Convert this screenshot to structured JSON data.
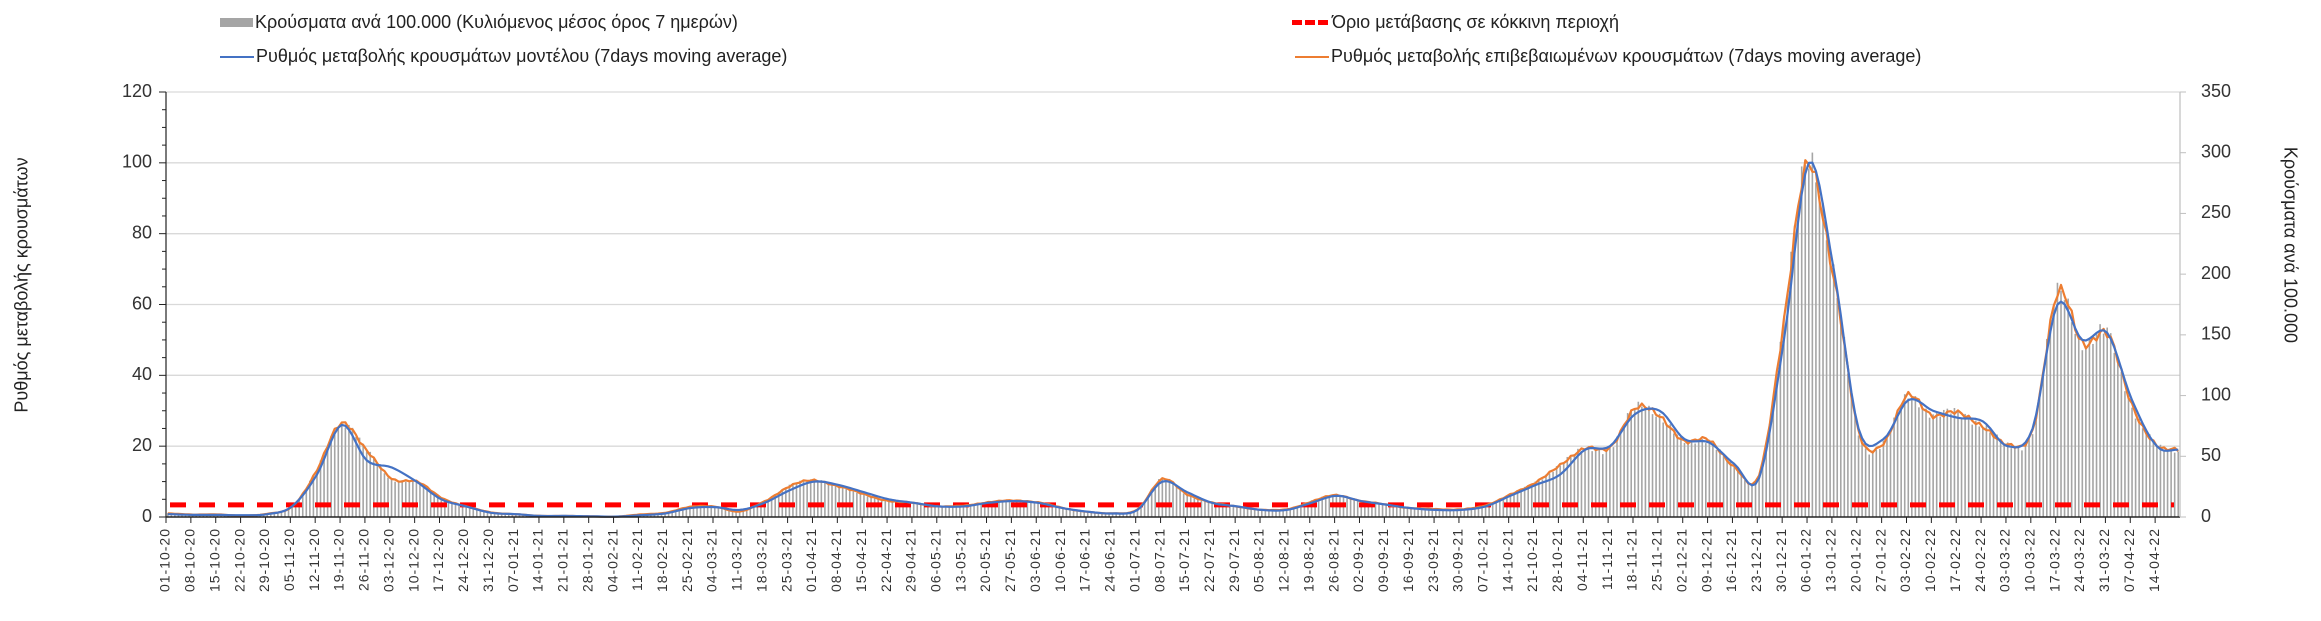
{
  "chart_data": {
    "type": "bar+line",
    "legend": {
      "bars": "Κρούσματα ανά 100.000 (Κυλιόμενος μέσος όρος 7 ημερών)",
      "threshold": "Όριο μετάβασης σε κόκκινη περιοχή",
      "model": "Ρυθμός μεταβολής κρουσμάτων μοντέλου (7days moving average)",
      "confirmed": "Ρυθμός μεταβολής επιβεβαιωμένων κρουσμάτων (7days moving average)"
    },
    "ylabel_left": "Ρυθμός μεταβολής κρουσμάτων",
    "ylabel_right": "Κρούσματα ανά 100.000",
    "ylim_left": [
      0,
      120
    ],
    "yticks_left": [
      "0",
      "20",
      "40",
      "60",
      "80",
      "100",
      "120"
    ],
    "ylim_right": [
      0,
      350
    ],
    "yticks_right": [
      "0",
      "50",
      "100",
      "150",
      "200",
      "250",
      "300",
      "350"
    ],
    "threshold_right_axis": 10,
    "x_tick_labels": [
      "01-10-20",
      "08-10-20",
      "15-10-20",
      "22-10-20",
      "29-10-20",
      "05-11-20",
      "12-11-20",
      "19-11-20",
      "26-11-20",
      "03-12-20",
      "10-12-20",
      "17-12-20",
      "24-12-20",
      "31-12-20",
      "07-01-21",
      "14-01-21",
      "21-01-21",
      "28-01-21",
      "04-02-21",
      "11-02-21",
      "18-02-21",
      "25-02-21",
      "04-03-21",
      "11-03-21",
      "18-03-21",
      "25-03-21",
      "01-04-21",
      "08-04-21",
      "15-04-21",
      "22-04-21",
      "29-04-21",
      "06-05-21",
      "13-05-21",
      "20-05-21",
      "27-05-21",
      "03-06-21",
      "10-06-21",
      "17-06-21",
      "24-06-21",
      "01-07-21",
      "08-07-21",
      "15-07-21",
      "22-07-21",
      "29-07-21",
      "05-08-21",
      "12-08-21",
      "19-08-21",
      "26-08-21",
      "02-09-21",
      "09-09-21",
      "16-09-21",
      "23-09-21",
      "30-09-21",
      "07-10-21",
      "14-10-21",
      "21-10-21",
      "28-10-21",
      "04-11-21",
      "11-11-21",
      "18-11-21",
      "25-11-21",
      "02-12-21",
      "09-12-21",
      "16-12-21",
      "23-12-21",
      "30-12-21",
      "06-01-22",
      "13-01-22",
      "20-01-22",
      "27-01-22",
      "03-02-22",
      "10-02-22",
      "17-02-22",
      "24-02-22",
      "03-03-22",
      "10-03-22",
      "17-03-22",
      "24-03-22",
      "31-03-22",
      "07-04-22",
      "14-04-22"
    ],
    "series": [
      {
        "name": "bars",
        "axis": "right",
        "color": "#a5a5a5",
        "values": [
          3,
          2,
          2,
          1,
          3,
          9,
          38,
          79,
          54,
          32,
          29,
          16,
          9,
          4,
          2,
          1,
          1,
          1,
          0,
          2,
          4,
          8,
          9,
          4,
          13,
          25,
          31,
          25,
          19,
          13,
          12,
          9,
          9,
          12,
          13,
          12,
          7,
          4,
          3,
          6,
          31,
          19,
          12,
          9,
          6,
          6,
          13,
          18,
          13,
          10,
          7,
          6,
          6,
          9,
          19,
          28,
          44,
          55,
          58,
          88,
          85,
          61,
          64,
          41,
          35,
          160,
          300,
          199,
          70,
          61,
          99,
          85,
          85,
          76,
          58,
          73,
          181,
          146,
          149,
          93,
          58,
          55
        ]
      },
      {
        "name": "model",
        "axis": "left",
        "color": "#4472c4",
        "values": [
          0.8,
          0.6,
          0.6,
          0.5,
          0.8,
          3,
          12,
          26,
          16,
          14,
          10,
          5,
          3,
          1.2,
          0.8,
          0.3,
          0.3,
          0.2,
          0.1,
          0.5,
          1,
          2.5,
          2.8,
          2,
          4,
          7.5,
          10,
          9,
          7,
          5,
          4,
          3,
          3,
          4,
          4.5,
          4,
          2.5,
          1.5,
          1,
          2,
          10,
          7,
          4,
          3,
          2,
          2,
          4,
          6,
          4.5,
          3.5,
          2.5,
          2,
          2,
          3,
          6,
          9,
          12,
          19,
          20,
          29,
          30,
          22,
          21,
          15,
          11,
          50,
          100,
          70,
          25,
          22,
          33,
          30,
          28,
          27,
          20,
          25,
          60,
          50,
          52,
          33,
          20,
          19
        ]
      },
      {
        "name": "confirmed",
        "axis": "left",
        "color": "#ed7d31",
        "values": [
          1,
          0.7,
          0.7,
          0.4,
          0.9,
          3,
          13,
          27,
          18.5,
          11,
          10,
          5.5,
          3,
          1.3,
          0.8,
          0.3,
          0.3,
          0.2,
          0.1,
          0.7,
          1.2,
          2.8,
          3,
          1.5,
          4.5,
          8.5,
          10.5,
          8.5,
          6.5,
          4.5,
          4,
          3,
          3.2,
          4.2,
          4.6,
          4.2,
          2.5,
          1.5,
          1,
          2.2,
          10.5,
          6.5,
          4,
          3,
          2,
          2.2,
          4.3,
          6.2,
          4.5,
          3.5,
          2.5,
          2.2,
          2.2,
          3.2,
          6.5,
          9.5,
          15,
          19,
          20,
          30,
          29,
          21,
          22,
          14,
          12,
          55,
          100,
          68,
          24,
          21,
          34,
          29,
          29,
          26,
          20,
          25,
          62,
          50,
          51,
          32,
          20,
          19
        ]
      }
    ],
    "threshold_color": "#ff0000",
    "grid": true
  }
}
